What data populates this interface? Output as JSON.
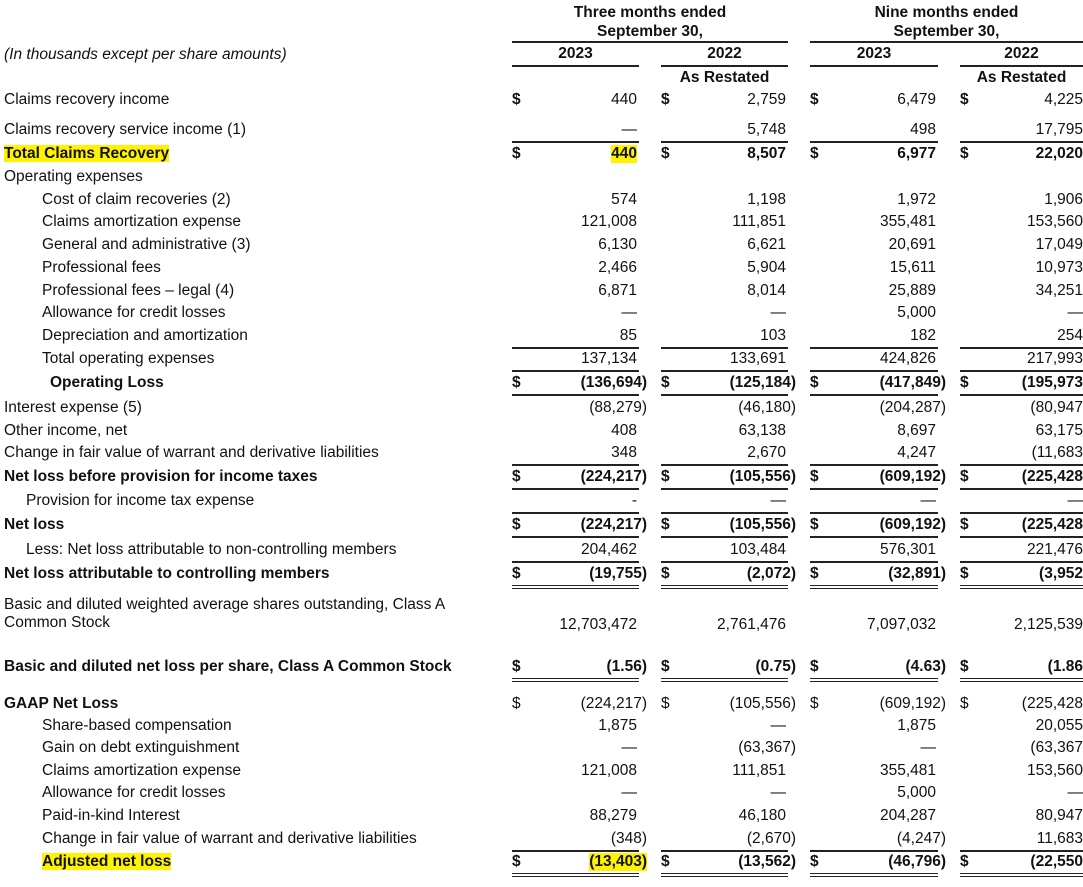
{
  "header": {
    "units_note": "(In thousands except per share amounts)",
    "groups": [
      {
        "line1": "Three months ended",
        "line2": "September 30,"
      },
      {
        "line1": "Nine months ended",
        "line2": "September 30,"
      }
    ],
    "years": [
      "2023",
      "2022",
      "2023",
      "2022"
    ],
    "restated": [
      "",
      "As Restated",
      "",
      "As Restated"
    ]
  },
  "highlight_color": "#fff200",
  "rows": [
    {
      "label": "Claims recovery income",
      "indent": 0,
      "bold": false,
      "dollar": true,
      "values": [
        "440",
        "2,759",
        "6,479",
        "4,225"
      ],
      "rule": ""
    },
    {
      "label": "Claims recovery service income (1)",
      "indent": 0,
      "bold": false,
      "dollar": false,
      "values": [
        "—",
        "5,748",
        "498",
        "17,795"
      ],
      "rule": "single"
    },
    {
      "label": "Total Claims Recovery",
      "indent": 0,
      "bold": true,
      "highlight_label": true,
      "highlight_first": true,
      "dollar": true,
      "values": [
        "440",
        "8,507",
        "6,977",
        "22,020"
      ],
      "rule": ""
    },
    {
      "label": "Operating expenses",
      "indent": 0,
      "bold": false,
      "dollar": false,
      "values": [
        "",
        "",
        "",
        ""
      ],
      "rule": ""
    },
    {
      "label": "Cost of claim recoveries (2)",
      "indent": 1,
      "bold": false,
      "dollar": false,
      "values": [
        "574",
        "1,198",
        "1,972",
        "1,906"
      ],
      "rule": ""
    },
    {
      "label": "Claims amortization expense",
      "indent": 1,
      "bold": false,
      "dollar": false,
      "values": [
        "121,008",
        "111,851",
        "355,481",
        "153,560"
      ],
      "rule": ""
    },
    {
      "label": "General and administrative (3)",
      "indent": 1,
      "bold": false,
      "dollar": false,
      "values": [
        "6,130",
        "6,621",
        "20,691",
        "17,049"
      ],
      "rule": ""
    },
    {
      "label": "Professional fees",
      "indent": 1,
      "bold": false,
      "dollar": false,
      "values": [
        "2,466",
        "5,904",
        "15,611",
        "10,973"
      ],
      "rule": ""
    },
    {
      "label": "Professional fees – legal (4)",
      "indent": 1,
      "bold": false,
      "dollar": false,
      "values": [
        "6,871",
        "8,014",
        "25,889",
        "34,251"
      ],
      "rule": ""
    },
    {
      "label": "Allowance for credit losses",
      "indent": 1,
      "bold": false,
      "dollar": false,
      "values": [
        "—",
        "—",
        "5,000",
        "—"
      ],
      "rule": ""
    },
    {
      "label": "Depreciation and amortization",
      "indent": 1,
      "bold": false,
      "dollar": false,
      "values": [
        "85",
        "103",
        "182",
        "254"
      ],
      "rule": "single"
    },
    {
      "label": "Total operating expenses",
      "indent": 1,
      "bold": false,
      "dollar": false,
      "values": [
        "137,134",
        "133,691",
        "424,826",
        "217,993"
      ],
      "rule": "single"
    },
    {
      "label": "Operating Loss",
      "indent": 2,
      "bold": true,
      "dollar": true,
      "values": [
        "(136,694)",
        "(125,184)",
        "(417,849)",
        "(195,973"
      ],
      "rule": "single"
    },
    {
      "label": "Interest expense (5)",
      "indent": 0,
      "bold": false,
      "dollar": false,
      "values": [
        "(88,279)",
        "(46,180)",
        "(204,287)",
        "(80,947"
      ],
      "rule": ""
    },
    {
      "label": "Other income, net",
      "indent": 0,
      "bold": false,
      "dollar": false,
      "values": [
        "408",
        "63,138",
        "8,697",
        "63,175"
      ],
      "rule": ""
    },
    {
      "label": "Change in fair value of warrant and derivative liabilities",
      "indent": 0,
      "bold": false,
      "dollar": false,
      "values": [
        "348",
        "2,670",
        "4,247",
        "(11,683"
      ],
      "rule": "single"
    },
    {
      "label": "Net loss before provision for income taxes",
      "indent": 0,
      "bold": true,
      "dollar": true,
      "values": [
        "(224,217)",
        "(105,556)",
        "(609,192)",
        "(225,428"
      ],
      "rule": "single"
    },
    {
      "label": "Provision for income tax expense",
      "indent": 3,
      "bold": false,
      "dollar": false,
      "values": [
        "-",
        "—",
        "—",
        "—"
      ],
      "rule": "single"
    },
    {
      "label": "Net loss",
      "indent": 0,
      "bold": true,
      "dollar": true,
      "values": [
        "(224,217)",
        "(105,556)",
        "(609,192)",
        "(225,428"
      ],
      "rule": "single"
    },
    {
      "label": "Less: Net loss attributable to non-controlling members",
      "indent": 3,
      "bold": false,
      "dollar": false,
      "values": [
        "204,462",
        "103,484",
        "576,301",
        "221,476"
      ],
      "rule": "single"
    },
    {
      "label": "Net loss attributable to controlling members",
      "indent": 0,
      "bold": true,
      "dollar": true,
      "values": [
        "(19,755)",
        "(2,072)",
        "(32,891)",
        "(3,952"
      ],
      "rule": "double"
    },
    {
      "label": "Basic and diluted weighted average shares outstanding, Class A",
      "label2": "Common Stock",
      "indent": 0,
      "bold": false,
      "dollar": false,
      "values": [
        "12,703,472",
        "2,761,476",
        "7,097,032",
        "2,125,539"
      ],
      "rule": ""
    },
    {
      "label": "Basic and diluted net loss per share, Class A Common Stock",
      "indent": 0,
      "bold": true,
      "dollar": true,
      "values": [
        "(1.56)",
        "(0.75)",
        "(4.63)",
        "(1.86"
      ],
      "rule": "double"
    },
    {
      "label": "GAAP Net Loss",
      "indent": 0,
      "bold": true,
      "dollar": true,
      "plain_dollar": true,
      "values": [
        "(224,217)",
        "(105,556)",
        "(609,192)",
        "(225,428"
      ],
      "rule": ""
    },
    {
      "label": "Share-based compensation",
      "indent": 1,
      "bold": false,
      "dollar": false,
      "values": [
        "1,875",
        "—",
        "1,875",
        "20,055"
      ],
      "rule": ""
    },
    {
      "label": "Gain on debt extinguishment",
      "indent": 1,
      "bold": false,
      "dollar": false,
      "values": [
        "—",
        "(63,367)",
        "—",
        "(63,367"
      ],
      "rule": ""
    },
    {
      "label": "Claims amortization expense",
      "indent": 1,
      "bold": false,
      "dollar": false,
      "values": [
        "121,008",
        "111,851",
        "355,481",
        "153,560"
      ],
      "rule": ""
    },
    {
      "label": "Allowance for credit losses",
      "indent": 1,
      "bold": false,
      "dollar": false,
      "values": [
        "—",
        "—",
        "5,000",
        "—"
      ],
      "rule": ""
    },
    {
      "label": "Paid-in-kind Interest",
      "indent": 1,
      "bold": false,
      "dollar": false,
      "values": [
        "88,279",
        "46,180",
        "204,287",
        "80,947"
      ],
      "rule": ""
    },
    {
      "label": "Change in fair value of warrant and derivative liabilities",
      "indent": 1,
      "bold": false,
      "dollar": false,
      "values": [
        "(348)",
        "(2,670)",
        "(4,247)",
        "11,683"
      ],
      "rule": "single"
    },
    {
      "label": "Adjusted net loss",
      "indent": 1,
      "bold": true,
      "highlight_label": true,
      "highlight_first": true,
      "dollar": true,
      "values": [
        "(13,403)",
        "(13,562)",
        "(46,796)",
        "(22,550"
      ],
      "rule": "double"
    }
  ]
}
